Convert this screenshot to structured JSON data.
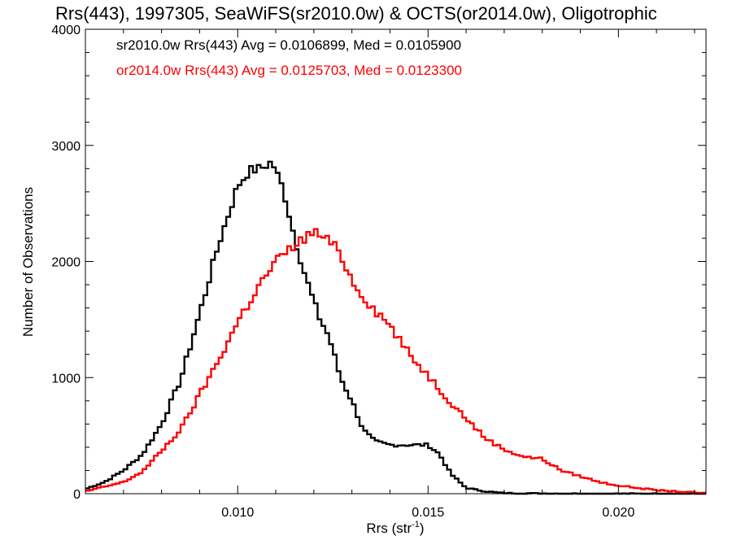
{
  "chart_data": {
    "type": "histogram",
    "title": "Rrs(443), 1997305, SeaWiFS(sr2010.0w) & OCTS(or2014.0w), Oligotrophic",
    "xlabel": "Rrs (str",
    "xlabel_sup": "-1",
    "xlabel_end": ")",
    "ylabel": "Number of Observations",
    "xlim": [
      0.006,
      0.0223
    ],
    "ylim": [
      0,
      4000
    ],
    "xticks": [
      0.01,
      0.015,
      0.02
    ],
    "xtick_labels": [
      "0.010",
      "0.015",
      "0.020"
    ],
    "xminor_step": 0.001,
    "yticks": [
      0,
      1000,
      2000,
      3000,
      4000
    ],
    "ytick_labels": [
      "0",
      "1000",
      "2000",
      "3000",
      "4000"
    ],
    "yminor_step": 200,
    "bin_width": 0.0001,
    "legend_position": "top-left",
    "series": [
      {
        "name": "sr2010.0w",
        "legend": "sr2010.0w Rrs(443) Avg = 0.0106899, Med = 0.0105900",
        "color": "#000000",
        "x": [
          0.006,
          0.0065,
          0.007,
          0.0075,
          0.008,
          0.0085,
          0.009,
          0.0095,
          0.01,
          0.0103,
          0.0106,
          0.0109,
          0.0112,
          0.0115,
          0.0118,
          0.0121,
          0.0124,
          0.0127,
          0.013,
          0.0133,
          0.0136,
          0.014,
          0.0145,
          0.015,
          0.0153,
          0.0156,
          0.016,
          0.0165,
          0.017,
          0.018,
          0.019,
          0.0223
        ],
        "y": [
          40,
          100,
          200,
          340,
          600,
          980,
          1550,
          2150,
          2650,
          2780,
          2800,
          2860,
          2620,
          2200,
          1850,
          1550,
          1350,
          1000,
          800,
          550,
          450,
          420,
          420,
          420,
          340,
          170,
          50,
          20,
          5,
          2,
          0,
          0
        ]
      },
      {
        "name": "or2014.0w",
        "legend": "or2014.0w Rrs(443) Avg = 0.0125703, Med = 0.0123300",
        "color": "#ff0000",
        "x": [
          0.006,
          0.007,
          0.0075,
          0.008,
          0.0085,
          0.009,
          0.0095,
          0.01,
          0.0105,
          0.011,
          0.0115,
          0.012,
          0.0125,
          0.0128,
          0.013,
          0.0135,
          0.014,
          0.0145,
          0.015,
          0.0155,
          0.016,
          0.0165,
          0.017,
          0.0175,
          0.018,
          0.0185,
          0.019,
          0.0195,
          0.02,
          0.021,
          0.022,
          0.0223
        ],
        "y": [
          20,
          100,
          190,
          370,
          550,
          850,
          1150,
          1480,
          1760,
          2000,
          2140,
          2260,
          2150,
          2000,
          1830,
          1620,
          1450,
          1200,
          1020,
          820,
          650,
          480,
          380,
          320,
          300,
          200,
          150,
          100,
          70,
          30,
          10,
          5
        ]
      }
    ]
  }
}
